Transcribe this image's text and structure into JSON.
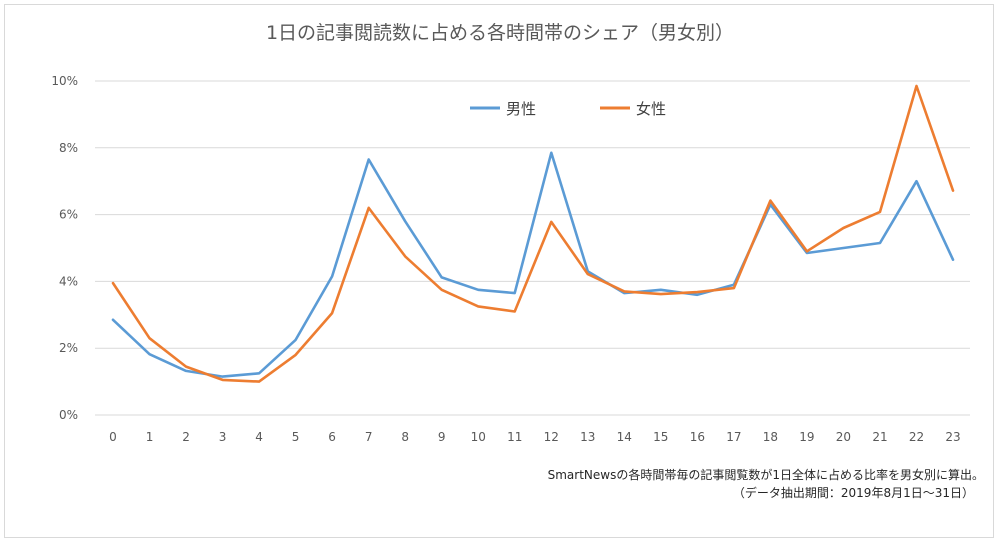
{
  "chart_data": {
    "type": "line",
    "title": "1日の記事閲読数に占める各時間帯のシェア（男女別）",
    "x": [
      "0",
      "1",
      "2",
      "3",
      "4",
      "5",
      "6",
      "7",
      "8",
      "9",
      "10",
      "11",
      "12",
      "13",
      "14",
      "15",
      "16",
      "17",
      "18",
      "19",
      "20",
      "21",
      "22",
      "23"
    ],
    "ylim": [
      0,
      10
    ],
    "yticks": [
      "0%",
      "2%",
      "4%",
      "6%",
      "8%",
      "10%"
    ],
    "grid": true,
    "legend": "top-center",
    "series": [
      {
        "name": "男性",
        "color": "#5b9bd5",
        "values": [
          2.85,
          1.82,
          1.32,
          1.15,
          1.25,
          2.25,
          4.15,
          7.65,
          5.8,
          4.12,
          3.75,
          3.65,
          7.85,
          4.3,
          3.65,
          3.75,
          3.6,
          3.9,
          6.3,
          4.85,
          5.0,
          5.15,
          7.0,
          4.65
        ]
      },
      {
        "name": "女性",
        "color": "#ed7d31",
        "values": [
          3.95,
          2.3,
          1.45,
          1.05,
          1.0,
          1.8,
          3.05,
          6.2,
          4.75,
          3.75,
          3.25,
          3.1,
          5.78,
          4.22,
          3.7,
          3.62,
          3.68,
          3.8,
          6.42,
          4.9,
          5.6,
          6.08,
          9.85,
          6.72
        ]
      }
    ]
  },
  "notes": {
    "line1": "SmartNewsの各時間帯毎の記事閲覧数が1日全体に占める比率を男女別に算出。",
    "line2": "（データ抽出期間：2019年8月1日〜31日）"
  },
  "colors": {
    "grid": "#d9d9d9",
    "text": "#595959"
  }
}
